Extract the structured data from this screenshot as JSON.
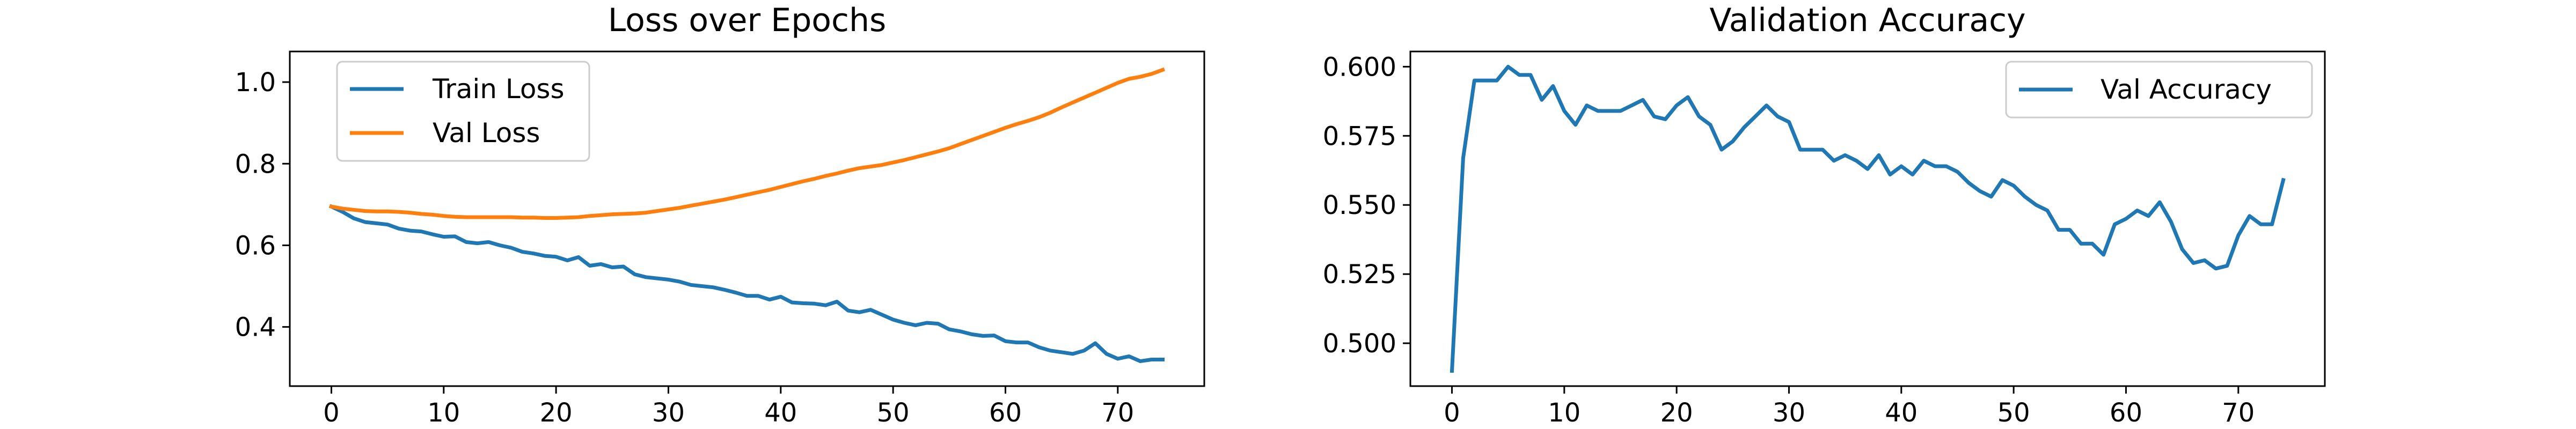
{
  "chart_data": [
    {
      "type": "line",
      "title": "Loss over Epochs",
      "xlabel": "",
      "ylabel": "",
      "xlim": [
        -3.7,
        77.7
      ],
      "ylim": [
        0.255,
        1.075
      ],
      "xticks": [
        0,
        10,
        20,
        30,
        40,
        50,
        60,
        70
      ],
      "yticks": [
        0.4,
        0.6,
        0.8,
        1.0
      ],
      "xtick_labels": [
        "0",
        "10",
        "20",
        "30",
        "40",
        "50",
        "60",
        "70"
      ],
      "ytick_labels": [
        "0.4",
        "0.6",
        "0.8",
        "1.0"
      ],
      "grid": false,
      "legend_position": "upper-left",
      "x": [
        0,
        1,
        2,
        3,
        4,
        5,
        6,
        7,
        8,
        9,
        10,
        11,
        12,
        13,
        14,
        15,
        16,
        17,
        18,
        19,
        20,
        21,
        22,
        23,
        24,
        25,
        26,
        27,
        28,
        29,
        30,
        31,
        32,
        33,
        34,
        35,
        36,
        37,
        38,
        39,
        40,
        41,
        42,
        43,
        44,
        45,
        46,
        47,
        48,
        49,
        50,
        51,
        52,
        53,
        54,
        55,
        56,
        57,
        58,
        59,
        60,
        61,
        62,
        63,
        64,
        65,
        66,
        67,
        68,
        69,
        70,
        71,
        72,
        73,
        74
      ],
      "series": [
        {
          "name": "Train Loss",
          "color": "#1f77b4",
          "values": [
            0.695,
            0.682,
            0.666,
            0.657,
            0.654,
            0.651,
            0.641,
            0.636,
            0.634,
            0.627,
            0.621,
            0.622,
            0.608,
            0.605,
            0.608,
            0.6,
            0.594,
            0.584,
            0.58,
            0.574,
            0.572,
            0.563,
            0.571,
            0.55,
            0.554,
            0.546,
            0.548,
            0.529,
            0.522,
            0.519,
            0.516,
            0.511,
            0.503,
            0.5,
            0.497,
            0.491,
            0.484,
            0.476,
            0.476,
            0.467,
            0.474,
            0.46,
            0.458,
            0.457,
            0.453,
            0.462,
            0.44,
            0.436,
            0.442,
            0.43,
            0.418,
            0.41,
            0.404,
            0.41,
            0.408,
            0.394,
            0.389,
            0.382,
            0.378,
            0.379,
            0.365,
            0.362,
            0.362,
            0.35,
            0.342,
            0.338,
            0.334,
            0.342,
            0.36,
            0.334,
            0.322,
            0.328,
            0.316,
            0.32,
            0.32
          ]
        },
        {
          "name": "Val Loss",
          "color": "#ff7f0e",
          "values": [
            0.695,
            0.69,
            0.687,
            0.684,
            0.683,
            0.683,
            0.682,
            0.68,
            0.677,
            0.675,
            0.672,
            0.67,
            0.669,
            0.669,
            0.669,
            0.669,
            0.669,
            0.668,
            0.668,
            0.667,
            0.667,
            0.668,
            0.669,
            0.672,
            0.674,
            0.676,
            0.677,
            0.678,
            0.68,
            0.684,
            0.688,
            0.692,
            0.697,
            0.702,
            0.707,
            0.712,
            0.718,
            0.724,
            0.73,
            0.736,
            0.743,
            0.75,
            0.757,
            0.763,
            0.77,
            0.776,
            0.783,
            0.789,
            0.793,
            0.797,
            0.803,
            0.809,
            0.816,
            0.823,
            0.83,
            0.838,
            0.848,
            0.858,
            0.868,
            0.878,
            0.888,
            0.897,
            0.905,
            0.914,
            0.925,
            0.938,
            0.95,
            0.962,
            0.974,
            0.986,
            0.998,
            1.008,
            1.013,
            1.02,
            1.03
          ]
        }
      ]
    },
    {
      "type": "line",
      "title": "Validation Accuracy",
      "xlabel": "",
      "ylabel": "",
      "xlim": [
        -3.7,
        77.7
      ],
      "ylim": [
        0.4845,
        0.6055
      ],
      "xticks": [
        0,
        10,
        20,
        30,
        40,
        50,
        60,
        70
      ],
      "yticks": [
        0.5,
        0.525,
        0.55,
        0.575,
        0.6
      ],
      "xtick_labels": [
        "0",
        "10",
        "20",
        "30",
        "40",
        "50",
        "60",
        "70"
      ],
      "ytick_labels": [
        "0.500",
        "0.525",
        "0.550",
        "0.575",
        "0.600"
      ],
      "grid": false,
      "legend_position": "upper-right",
      "x": [
        0,
        1,
        2,
        3,
        4,
        5,
        6,
        7,
        8,
        9,
        10,
        11,
        12,
        13,
        14,
        15,
        16,
        17,
        18,
        19,
        20,
        21,
        22,
        23,
        24,
        25,
        26,
        27,
        28,
        29,
        30,
        31,
        32,
        33,
        34,
        35,
        36,
        37,
        38,
        39,
        40,
        41,
        42,
        43,
        44,
        45,
        46,
        47,
        48,
        49,
        50,
        51,
        52,
        53,
        54,
        55,
        56,
        57,
        58,
        59,
        60,
        61,
        62,
        63,
        64,
        65,
        66,
        67,
        68,
        69,
        70,
        71,
        72,
        73,
        74
      ],
      "series": [
        {
          "name": "Val Accuracy",
          "color": "#1f77b4",
          "values": [
            0.49,
            0.567,
            0.595,
            0.595,
            0.595,
            0.6,
            0.597,
            0.597,
            0.588,
            0.593,
            0.584,
            0.579,
            0.586,
            0.584,
            0.584,
            0.584,
            0.586,
            0.588,
            0.582,
            0.581,
            0.586,
            0.589,
            0.582,
            0.579,
            0.57,
            0.573,
            0.578,
            0.582,
            0.586,
            0.582,
            0.58,
            0.57,
            0.57,
            0.57,
            0.566,
            0.568,
            0.566,
            0.563,
            0.568,
            0.561,
            0.564,
            0.561,
            0.566,
            0.564,
            0.564,
            0.562,
            0.558,
            0.555,
            0.553,
            0.559,
            0.557,
            0.553,
            0.55,
            0.548,
            0.541,
            0.541,
            0.536,
            0.536,
            0.532,
            0.543,
            0.545,
            0.548,
            0.546,
            0.551,
            0.544,
            0.534,
            0.529,
            0.53,
            0.527,
            0.528,
            0.539,
            0.546,
            0.543,
            0.543,
            0.559
          ]
        }
      ]
    }
  ]
}
